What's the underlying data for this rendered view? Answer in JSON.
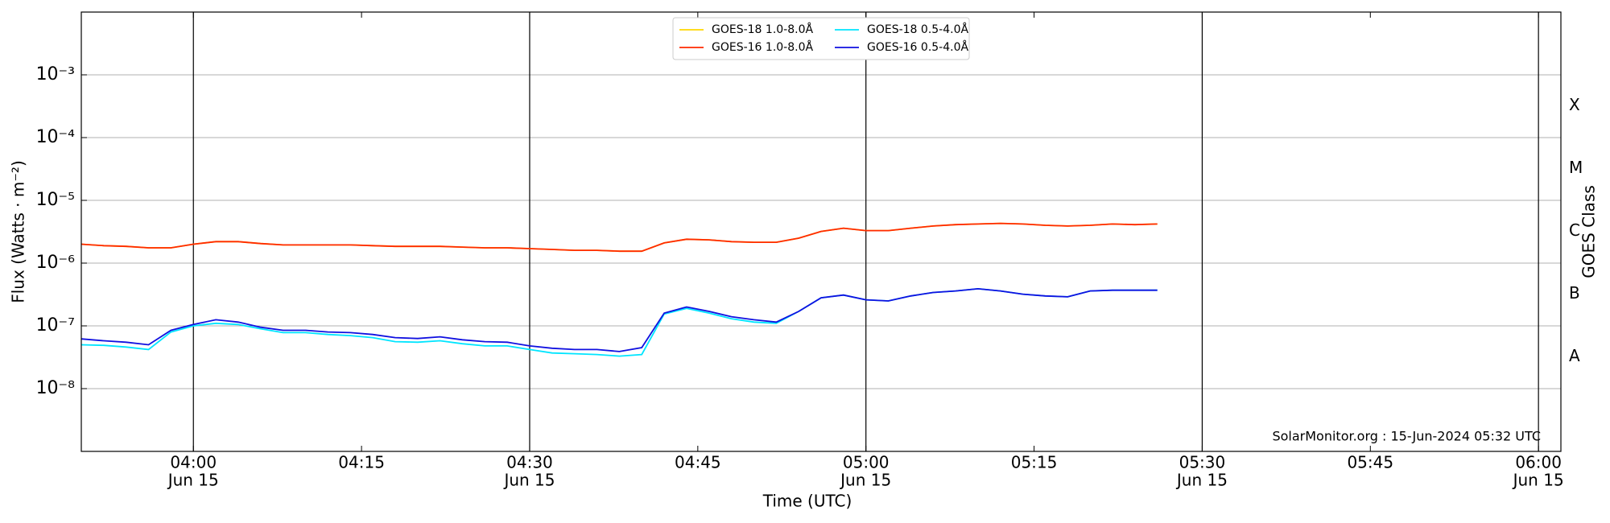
{
  "chart_data": {
    "type": "line",
    "ylabel": "Flux (Watts · m⁻²)",
    "xlabel": "Time (UTC)",
    "y2label": "GOES Class",
    "annotation": "SolarMonitor.org : 15-Jun-2024 05:32 UTC",
    "log_y": true,
    "grid": true,
    "legend": "top",
    "x": [
      "03:50",
      "03:52",
      "03:54",
      "03:56",
      "03:58",
      "04:00",
      "04:02",
      "04:04",
      "04:06",
      "04:08",
      "04:10",
      "04:12",
      "04:14",
      "04:16",
      "04:18",
      "04:20",
      "04:22",
      "04:24",
      "04:26",
      "04:28",
      "04:30",
      "04:32",
      "04:34",
      "04:36",
      "04:38",
      "04:40",
      "04:42",
      "04:44",
      "04:46",
      "04:48",
      "04:50",
      "04:52",
      "04:54",
      "04:56",
      "04:58",
      "05:00",
      "05:02",
      "05:04",
      "05:06",
      "05:08",
      "05:10",
      "05:12",
      "05:14",
      "05:16",
      "05:18",
      "05:20",
      "05:22",
      "05:24",
      "05:26"
    ],
    "series": [
      {
        "name": "GOES-18 1.0-8.0Å",
        "color": "#ffd700",
        "values": [
          2e-06,
          1.9e-06,
          1.85e-06,
          1.75e-06,
          1.75e-06,
          2e-06,
          2.2e-06,
          2.2e-06,
          2.05e-06,
          1.95e-06,
          1.95e-06,
          1.95e-06,
          1.95e-06,
          1.9e-06,
          1.85e-06,
          1.85e-06,
          1.85e-06,
          1.8e-06,
          1.75e-06,
          1.75e-06,
          1.7e-06,
          1.65e-06,
          1.6e-06,
          1.6e-06,
          1.55e-06,
          1.55e-06,
          2.1e-06,
          2.4e-06,
          2.35e-06,
          2.2e-06,
          2.15e-06,
          2.15e-06,
          2.5e-06,
          3.2e-06,
          3.6e-06,
          3.3e-06,
          3.3e-06,
          3.6e-06,
          3.9e-06,
          4.1e-06,
          4.2e-06,
          4.3e-06,
          4.2e-06,
          4e-06,
          3.9e-06,
          4e-06,
          4.2e-06,
          4.1e-06,
          4.2e-06
        ]
      },
      {
        "name": "GOES-16 1.0-8.0Å",
        "color": "#ff2a00",
        "values": [
          2e-06,
          1.9e-06,
          1.85e-06,
          1.75e-06,
          1.75e-06,
          2e-06,
          2.2e-06,
          2.2e-06,
          2.05e-06,
          1.95e-06,
          1.95e-06,
          1.95e-06,
          1.95e-06,
          1.9e-06,
          1.85e-06,
          1.85e-06,
          1.85e-06,
          1.8e-06,
          1.75e-06,
          1.75e-06,
          1.7e-06,
          1.65e-06,
          1.6e-06,
          1.6e-06,
          1.55e-06,
          1.55e-06,
          2.1e-06,
          2.4e-06,
          2.35e-06,
          2.2e-06,
          2.15e-06,
          2.15e-06,
          2.5e-06,
          3.2e-06,
          3.6e-06,
          3.3e-06,
          3.3e-06,
          3.6e-06,
          3.9e-06,
          4.1e-06,
          4.2e-06,
          4.3e-06,
          4.2e-06,
          4e-06,
          3.9e-06,
          4e-06,
          4.2e-06,
          4.1e-06,
          4.2e-06
        ]
      },
      {
        "name": "GOES-18 0.5-4.0Å",
        "color": "#00e5ff",
        "values": [
          5e-08,
          4.9e-08,
          4.6e-08,
          4.2e-08,
          8e-08,
          1e-07,
          1.1e-07,
          1.05e-07,
          9e-08,
          7.8e-08,
          7.8e-08,
          7.3e-08,
          7e-08,
          6.5e-08,
          5.6e-08,
          5.5e-08,
          5.8e-08,
          5.2e-08,
          4.8e-08,
          4.8e-08,
          4.2e-08,
          3.7e-08,
          3.6e-08,
          3.5e-08,
          3.3e-08,
          3.5e-08,
          1.55e-07,
          1.9e-07,
          1.6e-07,
          1.3e-07,
          1.15e-07,
          1.1e-07,
          1.7e-07,
          2.8e-07,
          3.1e-07,
          2.6e-07,
          2.5e-07,
          3e-07,
          3.4e-07,
          3.6e-07,
          3.9e-07,
          3.6e-07,
          3.2e-07,
          3e-07,
          2.9e-07,
          3.6e-07,
          3.7e-07,
          3.7e-07,
          3.7e-07
        ]
      },
      {
        "name": "GOES-16 0.5-4.0Å",
        "color": "#1010e0",
        "values": [
          6.2e-08,
          5.8e-08,
          5.5e-08,
          5e-08,
          8.5e-08,
          1.05e-07,
          1.25e-07,
          1.15e-07,
          9.5e-08,
          8.5e-08,
          8.5e-08,
          8e-08,
          7.8e-08,
          7.3e-08,
          6.5e-08,
          6.3e-08,
          6.7e-08,
          6e-08,
          5.6e-08,
          5.5e-08,
          4.8e-08,
          4.4e-08,
          4.2e-08,
          4.2e-08,
          3.9e-08,
          4.5e-08,
          1.6e-07,
          2e-07,
          1.7e-07,
          1.4e-07,
          1.25e-07,
          1.15e-07,
          1.7e-07,
          2.8e-07,
          3.1e-07,
          2.6e-07,
          2.5e-07,
          3e-07,
          3.4e-07,
          3.6e-07,
          3.9e-07,
          3.6e-07,
          3.2e-07,
          3e-07,
          2.9e-07,
          3.6e-07,
          3.7e-07,
          3.7e-07,
          3.7e-07
        ]
      }
    ],
    "xlim": [
      "03:50",
      "06:02"
    ],
    "xticks": [
      "04:00",
      "04:15",
      "04:30",
      "04:45",
      "05:00",
      "05:15",
      "05:30",
      "05:45",
      "06:00"
    ],
    "xtick_dates": [
      "Jun 15",
      null,
      "Jun 15",
      null,
      "Jun 15",
      null,
      "Jun 15",
      null,
      "Jun 15"
    ],
    "ylim": [
      1e-09,
      0.01
    ],
    "yticks": [
      {
        "value": 1e-08,
        "label": "10⁻⁸"
      },
      {
        "value": 1e-07,
        "label": "10⁻⁷"
      },
      {
        "value": 1e-06,
        "label": "10⁻⁶"
      },
      {
        "value": 1e-05,
        "label": "10⁻⁵"
      },
      {
        "value": 0.0001,
        "label": "10⁻⁴"
      },
      {
        "value": 0.001,
        "label": "10⁻³"
      }
    ],
    "y2ticks": [
      {
        "value": 3.2e-08,
        "label": "A"
      },
      {
        "value": 3.2e-07,
        "label": "B"
      },
      {
        "value": 3.2e-06,
        "label": "C"
      },
      {
        "value": 3.2e-05,
        "label": "M"
      },
      {
        "value": 0.00032,
        "label": "X"
      }
    ]
  }
}
